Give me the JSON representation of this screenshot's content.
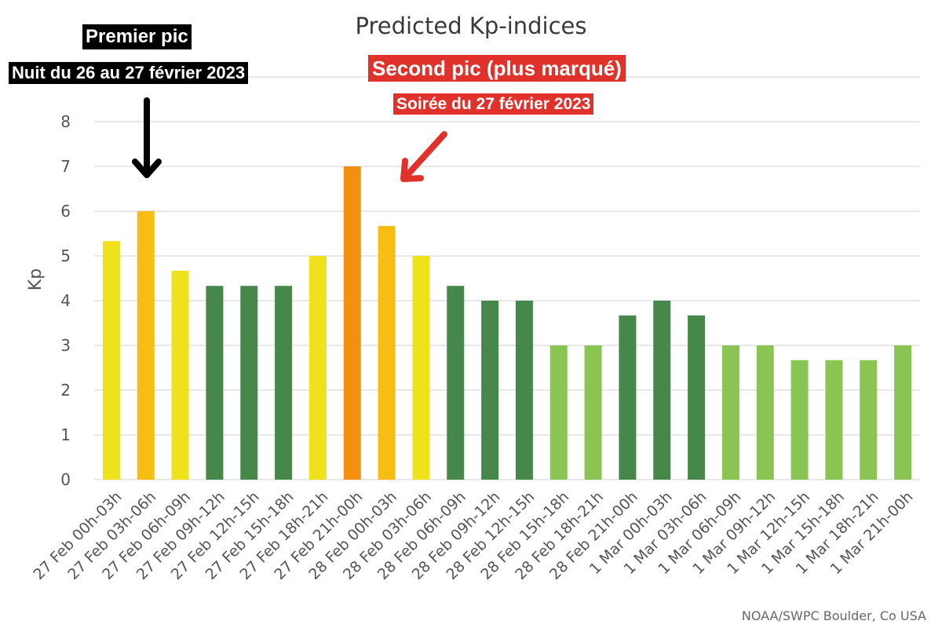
{
  "chart_data": {
    "type": "bar",
    "title": "Predicted Kp-indices",
    "xlabel": "",
    "ylabel": "Kp",
    "ylim": [
      0,
      8
    ],
    "yticks": [
      0,
      1,
      2,
      3,
      4,
      5,
      6,
      7,
      8
    ],
    "grid": true,
    "categories": [
      "27 Feb 00h-03h",
      "27 Feb 03h-06h",
      "27 Feb 06h-09h",
      "27 Feb 09h-12h",
      "27 Feb 12h-15h",
      "27 Feb 15h-18h",
      "27 Feb 18h-21h",
      "27 Feb 21h-00h",
      "28 Feb 00h-03h",
      "28 Feb 03h-06h",
      "28 Feb 06h-09h",
      "28 Feb 09h-12h",
      "28 Feb 12h-15h",
      "28 Feb 15h-18h",
      "28 Feb 18h-21h",
      "28 Feb 21h-00h",
      "1 Mar 00h-03h",
      "1 Mar 03h-06h",
      "1 Mar 06h-09h",
      "1 Mar 09h-12h",
      "1 Mar 12h-15h",
      "1 Mar 15h-18h",
      "1 Mar 18h-21h",
      "1 Mar 21h-00h"
    ],
    "values": [
      5.33,
      6.0,
      4.67,
      4.33,
      4.33,
      4.33,
      5.0,
      7.0,
      5.67,
      5.0,
      4.33,
      4.0,
      4.0,
      3.0,
      3.0,
      3.67,
      4.0,
      3.67,
      3.0,
      3.0,
      2.67,
      2.67,
      2.67,
      3.0
    ],
    "bar_colors": [
      "#efe11c",
      "#f6bd14",
      "#efe11c",
      "#46884a",
      "#46884a",
      "#46884a",
      "#efe11c",
      "#f4900f",
      "#f6bd14",
      "#efe11c",
      "#46884a",
      "#46884a",
      "#46884a",
      "#8ac553",
      "#8ac553",
      "#46884a",
      "#46884a",
      "#46884a",
      "#8ac553",
      "#8ac553",
      "#8ac553",
      "#8ac553",
      "#8ac553",
      "#8ac553"
    ],
    "annotations": [
      {
        "text": "Premier pic",
        "subtext": "Nuit du 26 au 27 février 2023",
        "color": "#000000",
        "points_to": "27 Feb 03h-06h"
      },
      {
        "text": "Second pic (plus marqué)",
        "subtext": "Soirée du 27 février 2023",
        "color": "#e0312b",
        "points_to": "28 Feb 00h-03h"
      }
    ],
    "source": "NOAA/SWPC Boulder, Co USA"
  }
}
